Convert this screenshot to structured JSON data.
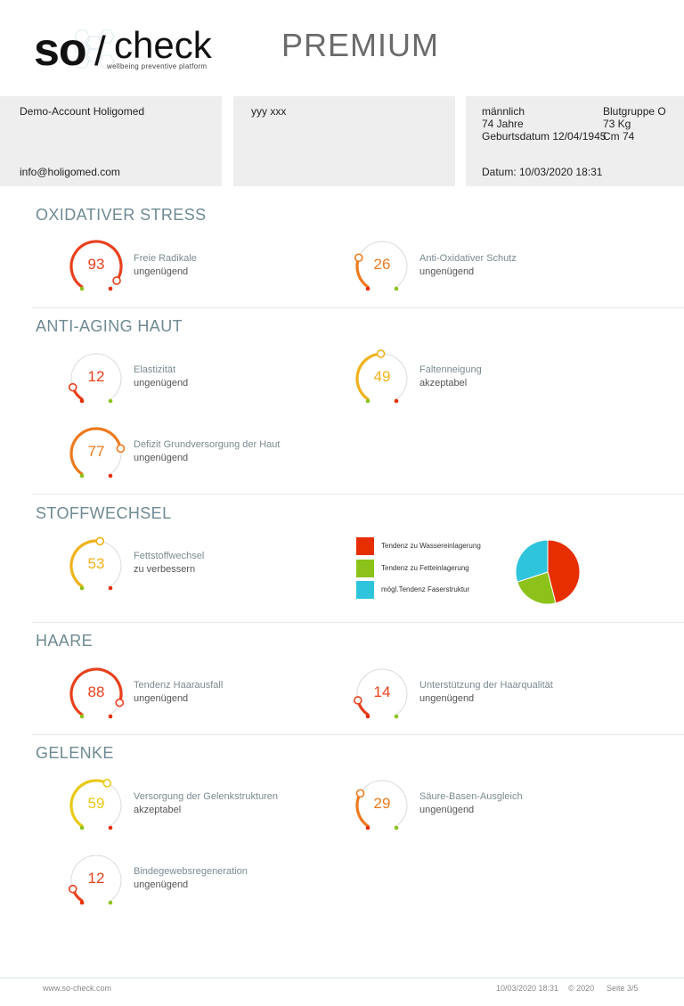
{
  "logo": {
    "brand_so": "so",
    "brand_check": "check",
    "slash": "/",
    "tagline": "wellbeing preventive platform"
  },
  "header": {
    "title": "PREMIUM"
  },
  "info": {
    "account": "Demo-Account Holigomed",
    "email": "info@holigomed.com",
    "client_name": "yyy xxx",
    "gender": "männlich",
    "age": "74 Jahre",
    "birthdate": "Geburtsdatum 12/04/1945",
    "blood_group": "Blutgruppe O",
    "weight": "73 Kg",
    "height": "Cm 74",
    "date": "Datum: 10/03/2020 18:31"
  },
  "colors": {
    "red": "#e8401c",
    "orange": "#ec7a1d",
    "amber": "#efb21a",
    "yellow": "#e9c917",
    "green": "#8cc21a",
    "cyan": "#2dc4dc",
    "title": "#6f8a93"
  },
  "sections": [
    {
      "id": "oxidativ",
      "title": "OXIDATIVER STRESS"
    },
    {
      "id": "antiaging",
      "title": "ANTI-AGING HAUT"
    },
    {
      "id": "stoffwechsel",
      "title": "STOFFWECHSEL"
    },
    {
      "id": "haare",
      "title": "HAARE"
    },
    {
      "id": "gelenke",
      "title": "GELENKE"
    }
  ],
  "gauges": [
    {
      "value": 93,
      "label": "Freie Radikale",
      "status": "ungenügend",
      "color": "#e8401c"
    },
    {
      "value": 26,
      "label": "Anti-Oxidativer Schutz",
      "status": "ungenügend",
      "color": "#ec7a1d"
    },
    {
      "value": 12,
      "label": "Elastizität",
      "status": "ungenügend",
      "color": "#e8401c"
    },
    {
      "value": 49,
      "label": "Faltenneigung",
      "status": "akzeptabel",
      "color": "#efb21a"
    },
    {
      "value": 77,
      "label": "Defizit Grundversorgung der Haut",
      "status": "ungenügend",
      "color": "#ec7a1d"
    },
    {
      "value": 53,
      "label": "Fettstoffwechsel",
      "status": "zu verbessern",
      "color": "#efb21a"
    },
    {
      "value": 88,
      "label": "Tendenz Haarausfall",
      "status": "ungenügend",
      "color": "#e8401c"
    },
    {
      "value": 14,
      "label": "Unterstützung der Haarqualität",
      "status": "ungenügend",
      "color": "#e8401c"
    },
    {
      "value": 59,
      "label": "Versorgung der Gelenkstrukturen",
      "status": "akzeptabel",
      "color": "#e9c917"
    },
    {
      "value": 29,
      "label": "Säure-Basen-Ausgleich",
      "status": "ungenügend",
      "color": "#ec7a1d"
    },
    {
      "value": 12,
      "label": "Bindegewebsregeneration",
      "status": "ungenügend",
      "color": "#e8401c"
    }
  ],
  "chart_data": {
    "type": "pie",
    "labels": [
      "Tendenz zu Wassereinlagerung",
      "Tendenz zu Fetteinlagerung",
      "mögl.Tendenz Faserstruktur"
    ],
    "values": [
      46,
      24,
      30
    ],
    "colors": [
      "#e62e00",
      "#8cc21a",
      "#2dc4dc"
    ]
  },
  "footer": {
    "website": "www.so-check.com",
    "timestamp": "10/03/2020 18:31",
    "copyright": "© 2020",
    "page": "Seite 3/5"
  }
}
